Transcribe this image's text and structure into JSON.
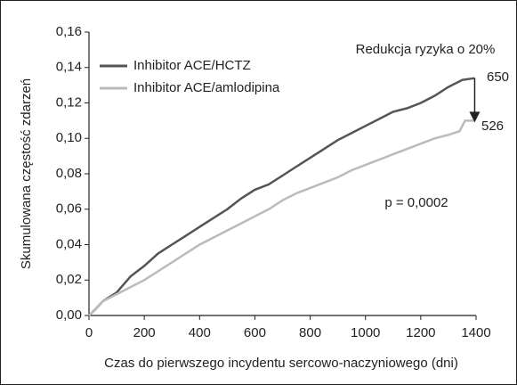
{
  "chart_data": {
    "type": "line",
    "xlabel": "Czas do pierwszego incydentu sercowo-naczyniowego (dni)",
    "ylabel": "Skumulowana częstość zdarzeń",
    "xlim": [
      0,
      1400
    ],
    "xticks": [
      0,
      200,
      400,
      600,
      800,
      1000,
      1200,
      1400
    ],
    "ylim": [
      0,
      0.16
    ],
    "yticks": [
      {
        "value": 0,
        "label": "0,00"
      },
      {
        "value": 0.02,
        "label": "0,02"
      },
      {
        "value": 0.04,
        "label": "0,04"
      },
      {
        "value": 0.06,
        "label": "0,06"
      },
      {
        "value": 0.08,
        "label": "0,08"
      },
      {
        "value": 0.1,
        "label": "0,10"
      },
      {
        "value": 0.12,
        "label": "0,12"
      },
      {
        "value": 0.14,
        "label": "0,14"
      },
      {
        "value": 0.16,
        "label": "0,16"
      }
    ],
    "legend": "upper left",
    "series": [
      {
        "name": "Inhibitor ACE/HCTZ",
        "color": "#555555",
        "x": [
          0,
          20,
          50,
          100,
          150,
          200,
          250,
          300,
          350,
          400,
          450,
          500,
          550,
          600,
          650,
          700,
          750,
          800,
          850,
          900,
          950,
          1000,
          1050,
          1100,
          1150,
          1200,
          1250,
          1300,
          1350,
          1395
        ],
        "values": [
          0,
          0.003,
          0.008,
          0.013,
          0.022,
          0.028,
          0.035,
          0.04,
          0.045,
          0.05,
          0.055,
          0.06,
          0.066,
          0.071,
          0.074,
          0.079,
          0.084,
          0.089,
          0.094,
          0.099,
          0.103,
          0.107,
          0.111,
          0.115,
          0.117,
          0.12,
          0.124,
          0.129,
          0.133,
          0.134
        ]
      },
      {
        "name": "Inhibitor ACE/amlodipina",
        "color": "#bbbbbb",
        "x": [
          0,
          50,
          100,
          150,
          200,
          250,
          300,
          350,
          400,
          450,
          500,
          550,
          600,
          650,
          700,
          750,
          800,
          850,
          900,
          950,
          1000,
          1050,
          1100,
          1150,
          1200,
          1250,
          1300,
          1340,
          1360,
          1395
        ],
        "values": [
          0,
          0.008,
          0.012,
          0.016,
          0.02,
          0.025,
          0.03,
          0.035,
          0.04,
          0.044,
          0.048,
          0.052,
          0.056,
          0.06,
          0.065,
          0.069,
          0.072,
          0.075,
          0.078,
          0.082,
          0.085,
          0.088,
          0.091,
          0.094,
          0.097,
          0.1,
          0.102,
          0.104,
          0.11,
          0.11
        ]
      }
    ],
    "annotations": [
      "Redukcja ryzyka o 20%",
      "650",
      "526",
      "p = 0,0002"
    ]
  }
}
